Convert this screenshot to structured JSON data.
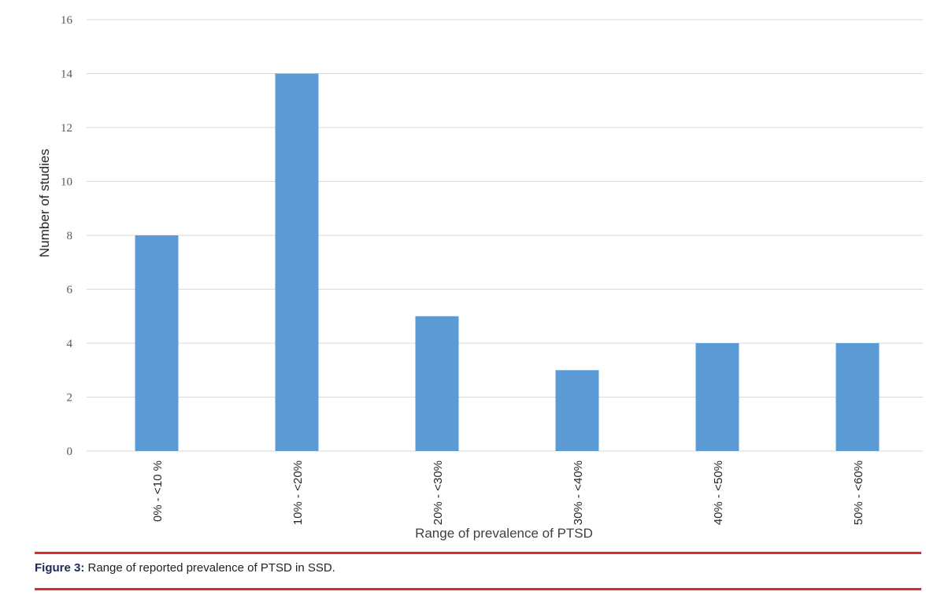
{
  "chart_data": {
    "type": "bar",
    "categories": [
      "0% - <10 %",
      "10% - <20%",
      "20% - <30%",
      "30% - <40%",
      "40% - <50%",
      "50% - <60%"
    ],
    "values": [
      8,
      14,
      5,
      3,
      4,
      4
    ],
    "xlabel": "Range of prevalence of PTSD",
    "ylabel": "Number of studies",
    "ylim": [
      0,
      16
    ],
    "yticks": [
      0,
      2,
      4,
      6,
      8,
      10,
      12,
      14,
      16
    ],
    "grid": true,
    "bar_color": "#5b9bd5"
  },
  "caption": {
    "label": "Figure 3:",
    "text": " Range of reported prevalence of PTSD in SSD."
  },
  "colors": {
    "rule": "#dd2a2a",
    "caption_label": "#1a2a55"
  }
}
